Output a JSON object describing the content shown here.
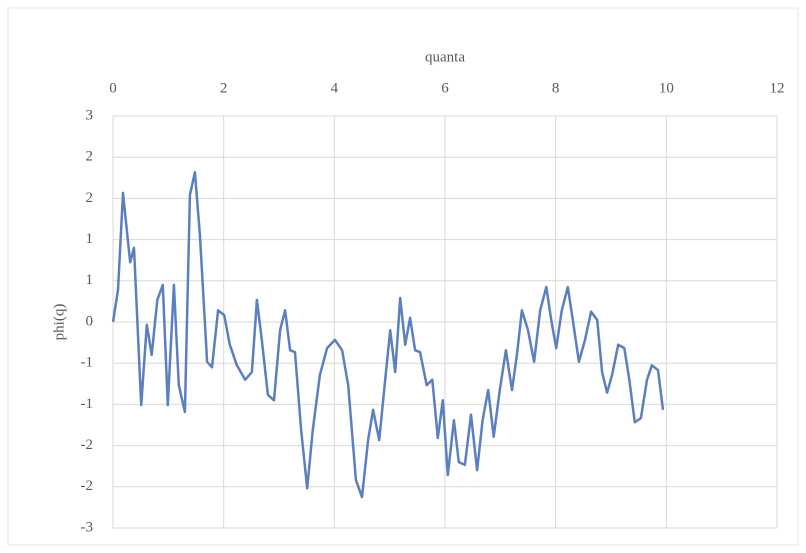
{
  "chart_data": {
    "type": "line",
    "x_label": "quanta",
    "y_label": "phi(q)",
    "xlim": [
      0,
      12
    ],
    "xticks": [
      0,
      2,
      4,
      6,
      8,
      10,
      12
    ],
    "ylim": [
      -3,
      3
    ],
    "yticks": [
      {
        "value": -3,
        "label": "-3"
      },
      {
        "value": -2.4,
        "label": "-2"
      },
      {
        "value": -1.8,
        "label": "-2"
      },
      {
        "value": -1.2,
        "label": "-1"
      },
      {
        "value": -0.6,
        "label": "-1"
      },
      0,
      {
        "value": 0.6,
        "label": "1"
      },
      {
        "value": 1.2,
        "label": "1"
      },
      {
        "value": 1.8,
        "label": "2"
      },
      {
        "value": 2.4,
        "label": "2"
      },
      {
        "value": 3,
        "label": "3"
      }
    ],
    "grid": true,
    "x_axis_position": "top",
    "series": [
      {
        "color": "#5b7fbf",
        "x": [
          0,
          0.09,
          0.18,
          0.25,
          0.31,
          0.38,
          0.51,
          0.61,
          0.7,
          0.8,
          0.9,
          0.99,
          1.1,
          1.19,
          1.3,
          1.39,
          1.48,
          1.57,
          1.7,
          1.79,
          1.9,
          2.01,
          2.11,
          2.24,
          2.39,
          2.51,
          2.6,
          2.69,
          2.8,
          2.91,
          3.02,
          3.11,
          3.2,
          3.29,
          3.4,
          3.51,
          3.61,
          3.74,
          3.87,
          4.01,
          4.14,
          4.25,
          4.39,
          4.5,
          4.61,
          4.7,
          4.81,
          4.92,
          5.01,
          5.1,
          5.19,
          5.28,
          5.37,
          5.46,
          5.55,
          5.67,
          5.77,
          5.87,
          5.96,
          6.05,
          6.16,
          6.25,
          6.36,
          6.47,
          6.58,
          6.68,
          6.78,
          6.88,
          6.99,
          7.1,
          7.21,
          7.3,
          7.39,
          7.5,
          7.61,
          7.72,
          7.83,
          7.92,
          8.01,
          8.11,
          8.22,
          8.31,
          8.42,
          8.53,
          8.64,
          8.75,
          8.84,
          8.93,
          9.02,
          9.13,
          9.24,
          9.33,
          9.43,
          9.54,
          9.65,
          9.74,
          9.85,
          9.94
        ],
        "values": [
          0,
          0.47,
          1.88,
          1.34,
          0.87,
          1.08,
          -1.21,
          -0.04,
          -0.48,
          0.32,
          0.54,
          -1.21,
          0.54,
          -0.92,
          -1.31,
          1.85,
          2.18,
          1.27,
          -0.58,
          -0.66,
          0.17,
          0.1,
          -0.33,
          -0.63,
          -0.84,
          -0.73,
          0.32,
          -0.26,
          -1.06,
          -1.14,
          -0.12,
          0.17,
          -0.41,
          -0.44,
          -1.57,
          -2.42,
          -1.57,
          -0.77,
          -0.38,
          -0.26,
          -0.41,
          -0.92,
          -2.3,
          -2.55,
          -1.72,
          -1.28,
          -1.72,
          -0.84,
          -0.12,
          -0.73,
          0.35,
          -0.33,
          0.06,
          -0.41,
          -0.44,
          -0.92,
          -0.84,
          -1.69,
          -1.14,
          -2.23,
          -1.43,
          -2.04,
          -2.08,
          -1.35,
          -2.16,
          -1.43,
          -0.99,
          -1.67,
          -0.99,
          -0.41,
          -0.99,
          -0.48,
          0.17,
          -0.12,
          -0.58,
          0.17,
          0.51,
          0.03,
          -0.38,
          0.17,
          0.51,
          0.03,
          -0.58,
          -0.26,
          0.15,
          0.03,
          -0.73,
          -1.03,
          -0.77,
          -0.33,
          -0.38,
          -0.84,
          -1.46,
          -1.4,
          -0.84,
          -0.63,
          -0.7,
          -1.28
        ]
      }
    ]
  }
}
